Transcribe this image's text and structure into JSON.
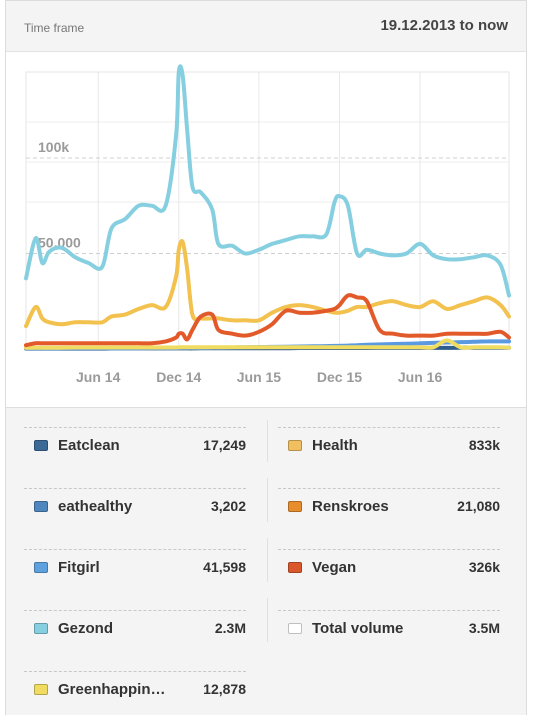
{
  "header": {
    "label": "Time frame",
    "range": "19.12.2013 to now"
  },
  "chart_data": {
    "type": "line",
    "x_ticks": [
      "Jun 14",
      "Dec 14",
      "Jun 15",
      "Dec 15",
      "Jun 16"
    ],
    "y_ticks": [
      "50,000",
      "100k"
    ],
    "y_tick_values": [
      50000,
      100000
    ],
    "ylim": [
      0,
      145000
    ],
    "grid": true,
    "x": [
      "2013-12-19",
      "2014-01-10",
      "2014-01-25",
      "2014-02-10",
      "2014-03-10",
      "2014-04-10",
      "2014-05-10",
      "2014-06-10",
      "2014-07-01",
      "2014-08-01",
      "2014-09-01",
      "2014-10-01",
      "2014-11-01",
      "2014-11-25",
      "2014-12-01",
      "2014-12-10",
      "2014-12-20",
      "2015-01-01",
      "2015-01-20",
      "2015-02-15",
      "2015-03-01",
      "2015-04-01",
      "2015-05-01",
      "2015-06-01",
      "2015-07-01",
      "2015-08-01",
      "2015-09-01",
      "2015-10-01",
      "2015-11-01",
      "2015-11-20",
      "2015-12-01",
      "2015-12-20",
      "2016-01-10",
      "2016-02-01",
      "2016-03-01",
      "2016-04-01",
      "2016-05-01",
      "2016-06-01",
      "2016-07-01",
      "2016-08-01",
      "2016-09-01",
      "2016-10-01",
      "2016-11-01",
      "2016-12-01",
      "2016-12-20"
    ],
    "series": [
      {
        "name": "Gezond",
        "color": "#86cfe0",
        "values": [
          37000,
          58000,
          45000,
          51000,
          53000,
          48000,
          45000,
          43000,
          63000,
          68000,
          75000,
          75000,
          75000,
          112000,
          145000,
          143000,
          115000,
          85000,
          82000,
          73000,
          55000,
          54000,
          50000,
          52000,
          55000,
          57000,
          59000,
          59000,
          60000,
          77000,
          80000,
          75000,
          50000,
          52000,
          50000,
          49000,
          50000,
          55000,
          49000,
          47000,
          47000,
          48000,
          49000,
          44000,
          28000
        ]
      },
      {
        "name": "Health",
        "color": "#f2c14e",
        "values": [
          12000,
          22000,
          16000,
          14000,
          13000,
          14000,
          14000,
          14000,
          17000,
          18000,
          21000,
          23000,
          22000,
          38000,
          52000,
          56000,
          42000,
          18000,
          16000,
          16000,
          16000,
          15000,
          15000,
          15000,
          19000,
          22000,
          23000,
          22000,
          20000,
          19000,
          19000,
          20000,
          22000,
          22000,
          24000,
          25000,
          23000,
          22000,
          25000,
          21000,
          23000,
          25000,
          27000,
          23000,
          17000
        ]
      },
      {
        "name": "Vegan",
        "color": "#e35a2a",
        "values": [
          2000,
          3000,
          3000,
          3000,
          3000,
          3000,
          3000,
          3000,
          3000,
          3000,
          3000,
          3000,
          4000,
          6000,
          8000,
          8000,
          5000,
          10000,
          17000,
          18000,
          10000,
          8000,
          7000,
          9000,
          13000,
          20000,
          19000,
          19000,
          20000,
          21000,
          23000,
          28000,
          27000,
          25000,
          10000,
          8000,
          7000,
          7000,
          7000,
          8000,
          8000,
          8000,
          8000,
          9000,
          6000
        ]
      },
      {
        "name": "Greenhappin…",
        "color": "#f1dc62",
        "values": [
          700,
          700,
          700,
          700,
          700,
          800,
          800,
          800,
          800,
          800,
          800,
          800,
          800,
          800,
          900,
          900,
          900,
          900,
          900,
          900,
          900,
          900,
          900,
          900,
          900,
          900,
          900,
          900,
          900,
          900,
          900,
          900,
          900,
          900,
          900,
          900,
          900,
          900,
          900,
          4500,
          900,
          900,
          900,
          900,
          700
        ]
      },
      {
        "name": "Fitgirl",
        "color": "#5b9ae0",
        "values": [
          300,
          300,
          300,
          300,
          400,
          400,
          400,
          400,
          400,
          400,
          400,
          500,
          500,
          500,
          500,
          600,
          600,
          600,
          600,
          700,
          700,
          800,
          900,
          1000,
          1100,
          1200,
          1300,
          1400,
          1500,
          1600,
          1700,
          1800,
          2000,
          2200,
          2400,
          2600,
          2800,
          3000,
          3200,
          3400,
          3600,
          3800,
          4000,
          4000,
          4000
        ]
      },
      {
        "name": "Eatclean",
        "color": "#2f5d8c",
        "values": [
          200,
          200,
          200,
          200,
          200,
          200,
          200,
          200,
          300,
          300,
          300,
          300,
          300,
          300,
          300,
          300,
          300,
          300,
          400,
          400,
          400,
          400,
          400,
          400,
          400,
          400,
          500,
          500,
          500,
          500,
          500,
          500,
          500,
          500,
          600,
          600,
          600,
          600,
          600,
          600,
          700,
          700,
          700,
          700,
          700
        ]
      }
    ],
    "legend_items": [
      {
        "name": "Eatclean",
        "value": "17,249",
        "color": "#3c6996"
      },
      {
        "name": "Health",
        "value": "833k",
        "color": "#f0c060"
      },
      {
        "name": "eathealthy",
        "value": "3,202",
        "color": "#4f86bd"
      },
      {
        "name": "Renskroes",
        "value": "21,080",
        "color": "#e78d2e"
      },
      {
        "name": "Fitgirl",
        "value": "41,598",
        "color": "#5fa0de"
      },
      {
        "name": "Vegan",
        "value": "326k",
        "color": "#d9572a"
      },
      {
        "name": "Gezond",
        "value": "2.3M",
        "color": "#86cfe0"
      },
      {
        "name": "Total volume",
        "value": "3.5M",
        "color": "#ffffff"
      },
      {
        "name": "Greenhappin…",
        "value": "12,878",
        "color": "#f1dc62"
      }
    ]
  }
}
